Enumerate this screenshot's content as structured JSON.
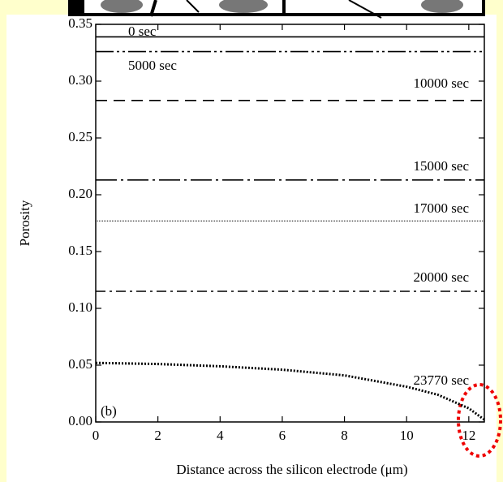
{
  "chart_data": {
    "type": "line",
    "x_label": "Distance across the silicon electrode (μm)",
    "y_label": "Porosity",
    "annotation": "(b)",
    "xlim": [
      0,
      12.5
    ],
    "xticks": [
      0,
      2,
      4,
      6,
      8,
      10,
      12
    ],
    "ylim": [
      0,
      0.35
    ],
    "yticks": [
      {
        "value": 0,
        "label": "0.00"
      },
      {
        "value": 0.05,
        "label": "0.05"
      },
      {
        "value": 0.1,
        "label": "0.10"
      },
      {
        "value": 0.15,
        "label": "0.15"
      },
      {
        "value": 0.2,
        "label": "0.20"
      },
      {
        "value": 0.25,
        "label": "0.25"
      },
      {
        "value": 0.3,
        "label": "0.30"
      },
      {
        "value": 0.35,
        "label": "0.35"
      }
    ],
    "x": [
      0,
      2,
      4,
      6,
      8,
      10,
      11,
      12,
      12.5
    ],
    "series": [
      {
        "name": "0 sec",
        "color": "#000000",
        "style": "solid",
        "values": [
          0.339,
          0.339,
          0.339,
          0.339,
          0.339,
          0.339,
          0.339,
          0.339,
          0.339
        ]
      },
      {
        "name": "5000 sec",
        "color": "#000000",
        "style": "dash-dot-dot",
        "values": [
          0.326,
          0.326,
          0.326,
          0.326,
          0.326,
          0.326,
          0.326,
          0.326,
          0.326
        ]
      },
      {
        "name": "10000 sec",
        "color": "#000000",
        "style": "dashed",
        "values": [
          0.283,
          0.283,
          0.283,
          0.283,
          0.283,
          0.283,
          0.283,
          0.283,
          0.283
        ]
      },
      {
        "name": "15000 sec",
        "color": "#000000",
        "style": "long-dash-dot",
        "values": [
          0.213,
          0.213,
          0.213,
          0.213,
          0.213,
          0.213,
          0.213,
          0.213,
          0.213
        ]
      },
      {
        "name": "17000 sec",
        "color": "#000000",
        "style": "fine-dotted",
        "values": [
          0.177,
          0.177,
          0.177,
          0.177,
          0.177,
          0.177,
          0.177,
          0.177,
          0.177
        ]
      },
      {
        "name": "20000 sec",
        "color": "#000000",
        "style": "dash-dot",
        "values": [
          0.115,
          0.115,
          0.115,
          0.115,
          0.115,
          0.115,
          0.115,
          0.115,
          0.115
        ]
      },
      {
        "name": "23770 sec",
        "color": "#000000",
        "style": "dotted",
        "values": [
          0.052,
          0.051,
          0.049,
          0.046,
          0.041,
          0.031,
          0.024,
          0.012,
          0.002
        ]
      }
    ]
  }
}
